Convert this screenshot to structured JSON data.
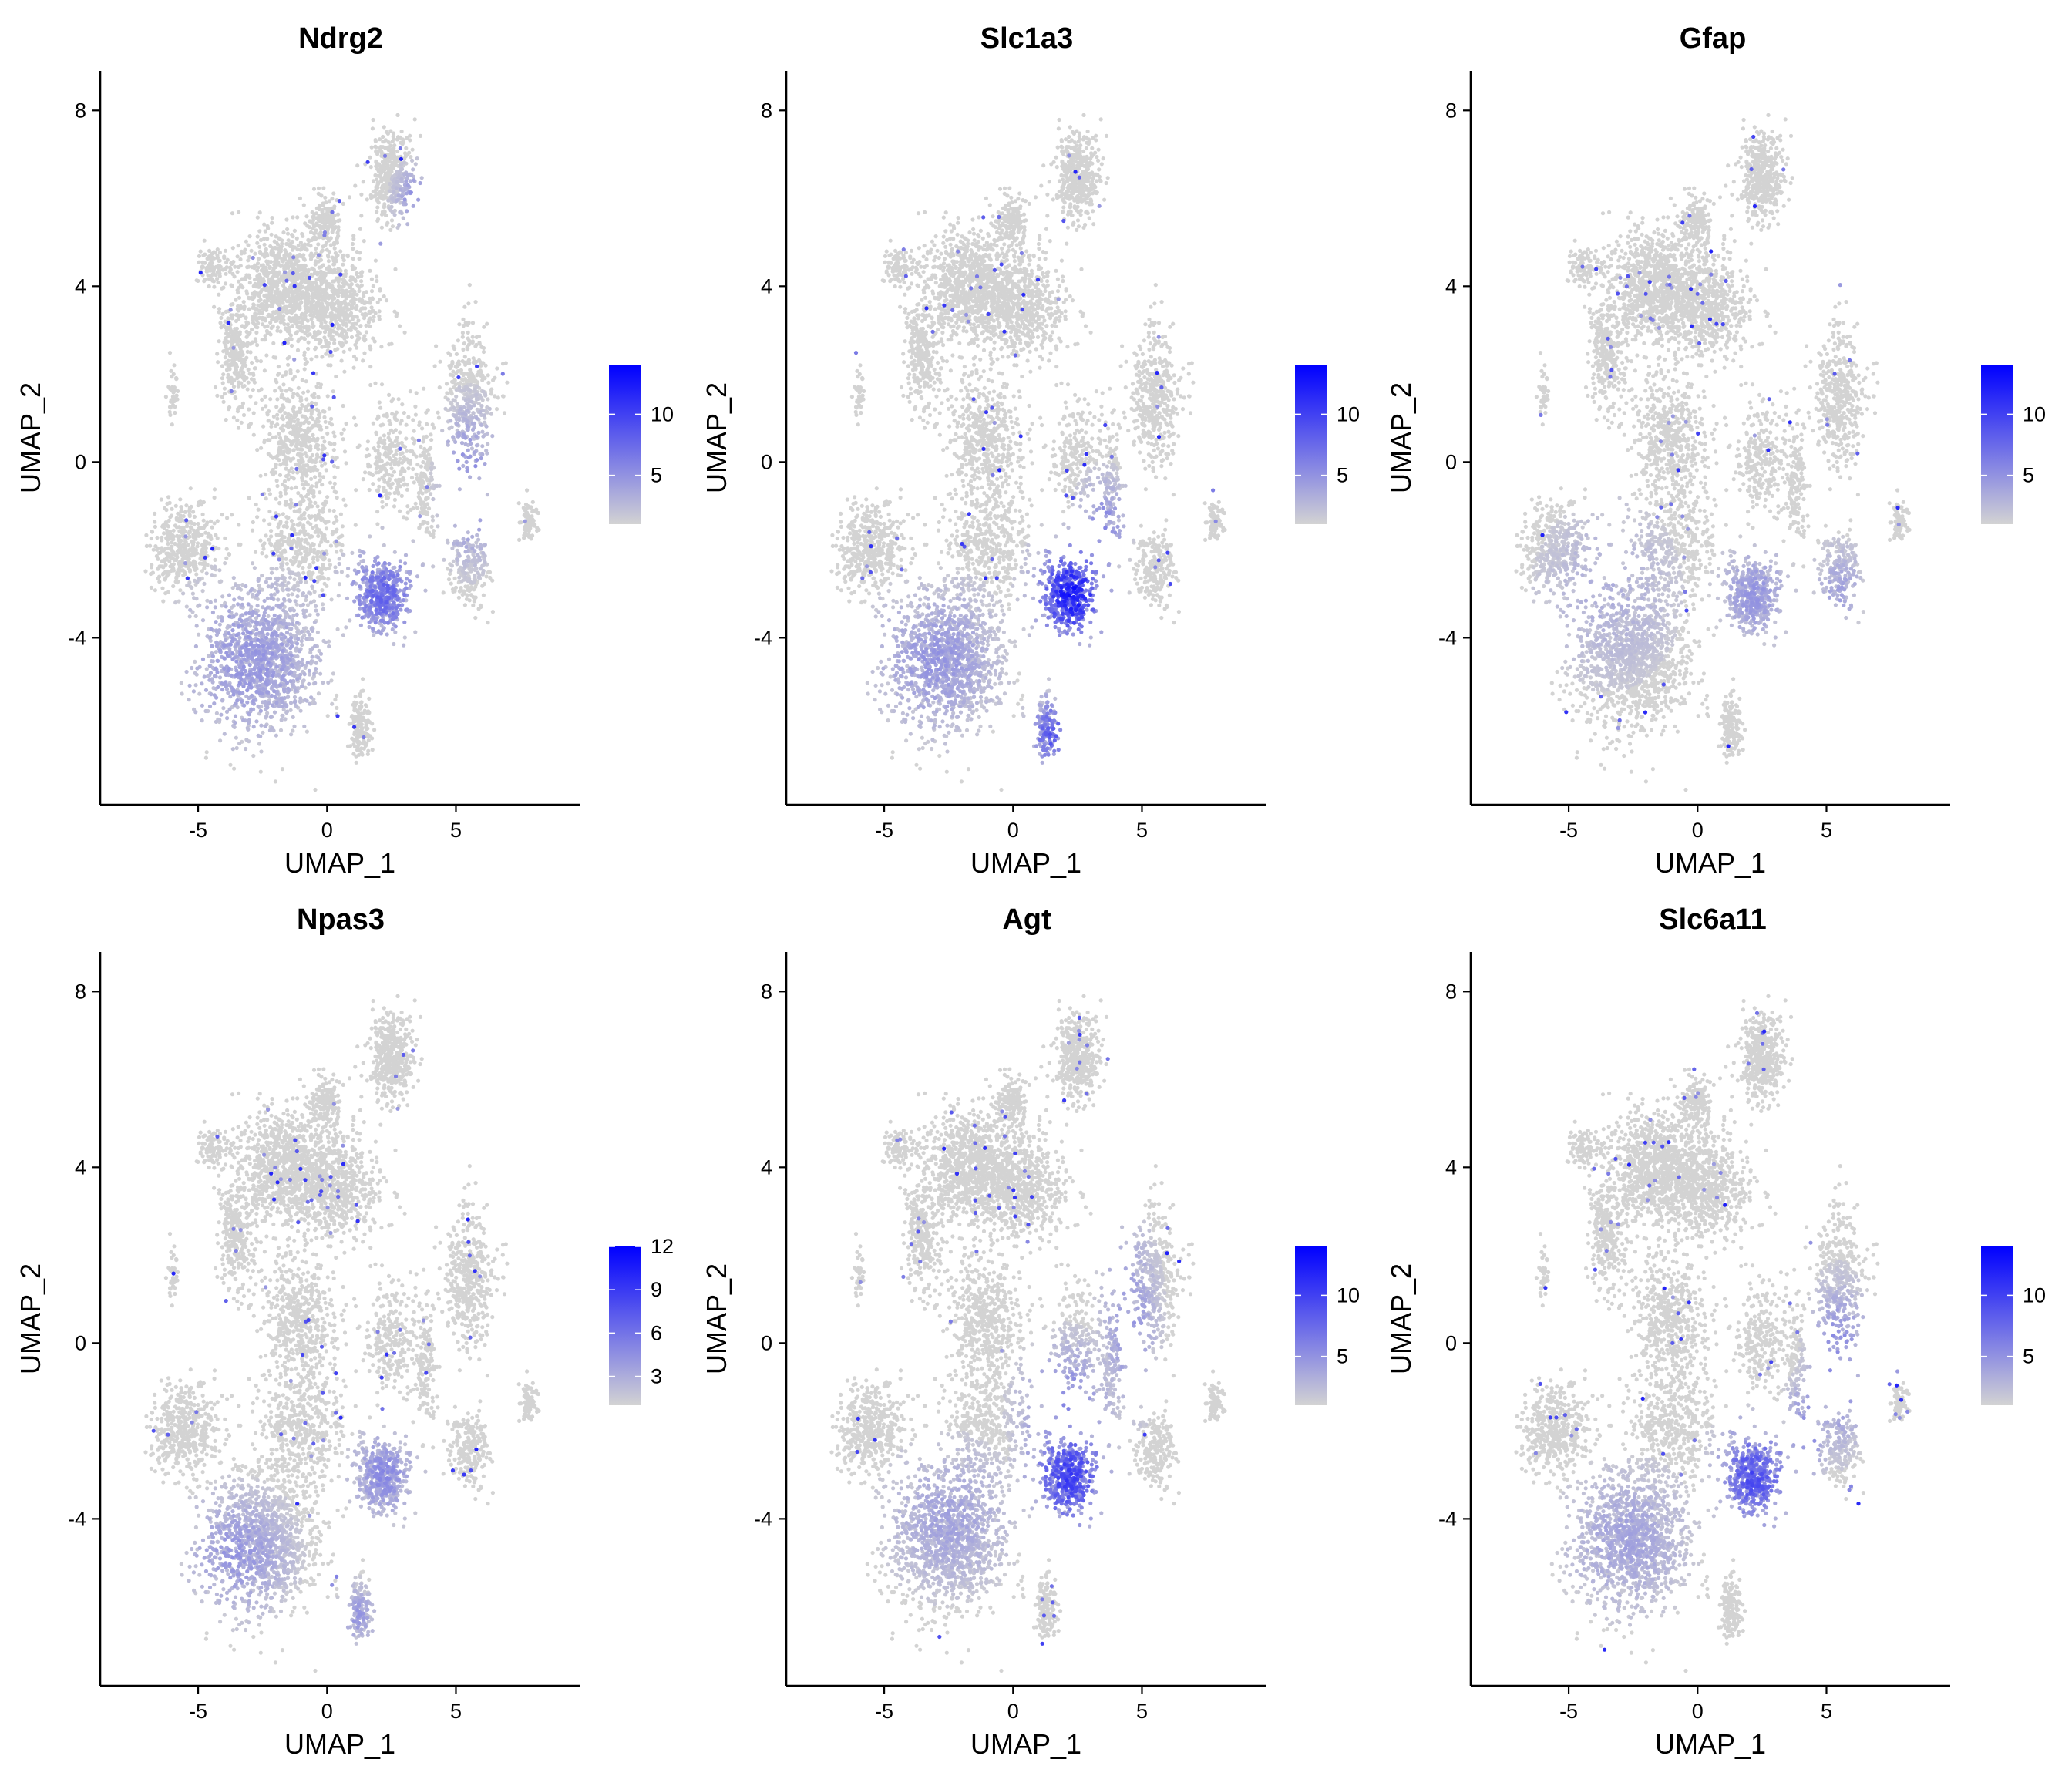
{
  "chart_data": [
    {
      "type": "scatter",
      "title": "Ndrg2",
      "xlabel": "UMAP_1",
      "ylabel": "UMAP_2",
      "xticks": [
        -5,
        0,
        5
      ],
      "yticks": [
        -4,
        0,
        4,
        8
      ],
      "xlim": [
        -8.8,
        9.8
      ],
      "ylim": [
        -7.8,
        8.9
      ],
      "legend": {
        "position": "right",
        "ticks": [
          5,
          10
        ],
        "min": 1,
        "max": 14,
        "low_color": "#d3d3d3",
        "high_color": "#0000ff"
      },
      "high_expression_regions": [
        {
          "x": 2.2,
          "y": -3.0,
          "sx": 1.0,
          "sy": 0.75,
          "level": 0.45
        },
        {
          "x": 5.5,
          "y": -0.5,
          "sx": 0.8,
          "sy": 1.2,
          "level": 0.3
        },
        {
          "x": -3.0,
          "y": -4.5,
          "sx": 2.0,
          "sy": 1.3,
          "level": 0.25
        },
        {
          "x": 3.5,
          "y": 6.0,
          "sx": 0.6,
          "sy": 0.5,
          "level": 0.3
        }
      ]
    },
    {
      "type": "scatter",
      "title": "Slc1a3",
      "xlabel": "UMAP_1",
      "ylabel": "UMAP_2",
      "xticks": [
        -5,
        0,
        5
      ],
      "yticks": [
        -4,
        0,
        4,
        8
      ],
      "xlim": [
        -8.8,
        9.8
      ],
      "ylim": [
        -7.8,
        8.9
      ],
      "legend": {
        "position": "right",
        "ticks": [
          5,
          10
        ],
        "min": 1,
        "max": 14,
        "low_color": "#d3d3d3",
        "high_color": "#0000ff"
      },
      "high_expression_regions": [
        {
          "x": 2.3,
          "y": -3.0,
          "sx": 1.0,
          "sy": 0.8,
          "level": 0.75
        },
        {
          "x": 1.5,
          "y": -6.2,
          "sx": 0.6,
          "sy": 0.6,
          "level": 0.5
        },
        {
          "x": -3.0,
          "y": -4.5,
          "sx": 1.8,
          "sy": 1.2,
          "level": 0.25
        },
        {
          "x": 3.5,
          "y": -1.5,
          "sx": 0.7,
          "sy": 0.8,
          "level": 0.3
        }
      ]
    },
    {
      "type": "scatter",
      "title": "Gfap",
      "xlabel": "UMAP_1",
      "ylabel": "UMAP_2",
      "xticks": [
        -5,
        0,
        5
      ],
      "yticks": [
        -4,
        0,
        4,
        8
      ],
      "xlim": [
        -8.8,
        9.8
      ],
      "ylim": [
        -7.8,
        8.9
      ],
      "legend": {
        "position": "right",
        "ticks": [
          5,
          10
        ],
        "min": 1,
        "max": 14,
        "low_color": "#d3d3d3",
        "high_color": "#0000ff"
      },
      "high_expression_regions": [
        {
          "x": 2.2,
          "y": -3.0,
          "sx": 1.0,
          "sy": 0.8,
          "level": 0.25
        },
        {
          "x": -3.5,
          "y": -3.0,
          "sx": 2.0,
          "sy": 1.5,
          "level": 0.15
        },
        {
          "x": 5.5,
          "y": -3.0,
          "sx": 0.8,
          "sy": 0.8,
          "level": 0.2
        }
      ]
    },
    {
      "type": "scatter",
      "title": "Npas3",
      "xlabel": "UMAP_1",
      "ylabel": "UMAP_2",
      "xticks": [
        -5,
        0,
        5
      ],
      "yticks": [
        -4,
        0,
        4,
        8
      ],
      "xlim": [
        -8.8,
        9.8
      ],
      "ylim": [
        -7.8,
        8.9
      ],
      "legend": {
        "position": "right",
        "ticks": [
          3,
          6,
          9,
          12
        ],
        "min": 1,
        "max": 12,
        "low_color": "#d3d3d3",
        "high_color": "#0000ff"
      },
      "high_expression_regions": [
        {
          "x": 2.2,
          "y": -3.0,
          "sx": 0.9,
          "sy": 0.7,
          "level": 0.3
        },
        {
          "x": -3.5,
          "y": -4.8,
          "sx": 1.5,
          "sy": 1.0,
          "level": 0.25
        },
        {
          "x": 1.2,
          "y": -6.2,
          "sx": 0.5,
          "sy": 0.5,
          "level": 0.25
        }
      ]
    },
    {
      "type": "scatter",
      "title": "Agt",
      "xlabel": "UMAP_1",
      "ylabel": "UMAP_2",
      "xticks": [
        -5,
        0,
        5
      ],
      "yticks": [
        -4,
        0,
        4,
        8
      ],
      "xlim": [
        -8.8,
        9.8
      ],
      "ylim": [
        -7.8,
        8.9
      ],
      "legend": {
        "position": "right",
        "ticks": [
          5,
          10
        ],
        "min": 1,
        "max": 14,
        "low_color": "#d3d3d3",
        "high_color": "#0000ff"
      },
      "high_expression_regions": [
        {
          "x": 2.2,
          "y": -3.0,
          "sx": 1.1,
          "sy": 0.9,
          "level": 0.6
        },
        {
          "x": 2.0,
          "y": -1.5,
          "sx": 1.2,
          "sy": 1.0,
          "level": 0.35
        },
        {
          "x": -2.5,
          "y": -4.0,
          "sx": 1.8,
          "sy": 1.2,
          "level": 0.2
        },
        {
          "x": 4.5,
          "y": 0.5,
          "sx": 0.8,
          "sy": 1.5,
          "level": 0.25
        }
      ]
    },
    {
      "type": "scatter",
      "title": "Slc6a11",
      "xlabel": "UMAP_1",
      "ylabel": "UMAP_2",
      "xticks": [
        -5,
        0,
        5
      ],
      "yticks": [
        -4,
        0,
        4,
        8
      ],
      "xlim": [
        -8.8,
        9.8
      ],
      "ylim": [
        -7.8,
        8.9
      ],
      "legend": {
        "position": "right",
        "ticks": [
          5,
          10
        ],
        "min": 1,
        "max": 14,
        "low_color": "#d3d3d3",
        "high_color": "#0000ff"
      },
      "high_expression_regions": [
        {
          "x": 2.2,
          "y": -3.0,
          "sx": 1.0,
          "sy": 0.8,
          "level": 0.55
        },
        {
          "x": 5.5,
          "y": -0.5,
          "sx": 0.8,
          "sy": 1.2,
          "level": 0.35
        },
        {
          "x": -2.8,
          "y": -4.5,
          "sx": 1.8,
          "sy": 1.2,
          "level": 0.2
        },
        {
          "x": 4.2,
          "y": -2.0,
          "sx": 0.6,
          "sy": 0.8,
          "level": 0.3
        }
      ]
    }
  ]
}
